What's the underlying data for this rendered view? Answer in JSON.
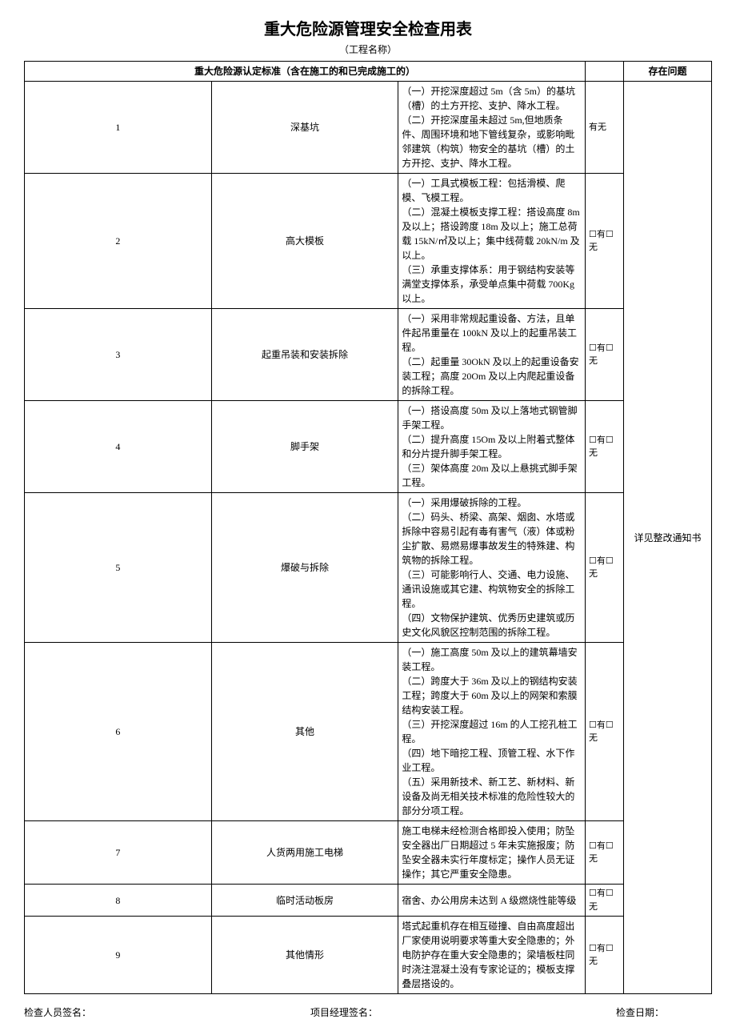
{
  "title": "重大危险源管理安全检查用表",
  "subtitle": "（工程名称）",
  "header": {
    "standard": "重大危险源认定标准（含在施工的和已完成施工的）",
    "issue": "存在问题"
  },
  "issue_note": "详见整改通知书",
  "checks": {
    "r1": "有无",
    "r2": "☐有☐无",
    "r3": "☐有☐无",
    "r4": "☐有☐无",
    "r5": "☐有☐无",
    "r6": "☐有☐无",
    "r7": "☐有☐无",
    "r8": "☐有☐无",
    "r9": "☐有☐无"
  },
  "rows": {
    "r1": {
      "num": "1",
      "name": "深基坑",
      "desc": "（一）开挖深度超过 5m（含 5m）的基坑（槽）的土方开挖、支护、降水工程。\n（二）开挖深度虽未超过 5m,但地质条件、周围环境和地下管线复杂，或影响毗邻建筑（构筑）物安全的基坑（槽）的土方开挖、支护、降水工程。"
    },
    "r2": {
      "num": "2",
      "name": "高大模板",
      "desc": "（一）工具式模板工程：包括滑模、爬模、飞模工程。\n（二）混凝土模板支撑工程：搭设高度 8m 及以上；搭设跨度 18m 及以上；施工总荷载 15kN/㎡及以上；集中线荷载 20kN/m 及以上。\n（三）承重支撑体系：用于钢结构安装等满堂支撑体系，承受单点集中荷载 700Kg 以上。"
    },
    "r3": {
      "num": "3",
      "name": "起重吊装和安装拆除",
      "desc": "（一）采用非常规起重设备、方法，且单件起吊重量在 100kN 及以上的起重吊装工程。\n（二）起重量 30OkN 及以上的起重设备安装工程；高度 20Om 及以上内爬起重设备的拆除工程。"
    },
    "r4": {
      "num": "4",
      "name": "脚手架",
      "desc": "（一）搭设高度 50m 及以上落地式钢管脚手架工程。\n（二）提升高度 15Om 及以上附着式整体和分片提升脚手架工程。\n（三）架体高度 20m 及以上悬挑式脚手架工程。"
    },
    "r5": {
      "num": "5",
      "name": "爆破与拆除",
      "desc": "（一）采用爆破拆除的工程。\n（二）码头、桥梁、高架、烟囱、水塔或拆除中容易引起有毒有害气（液）体或粉尘扩散、易燃易爆事故发生的特殊建、构筑物的拆除工程。\n（三）可能影响行人、交通、电力设施、通讯设施或其它建、构筑物安全的拆除工程。\n（四）文物保护建筑、优秀历史建筑或历史文化风貌区控制范围的拆除工程。"
    },
    "r6": {
      "num": "6",
      "name": "其他",
      "desc": "（一）施工高度 50m 及以上的建筑幕墙安装工程。\n（二）跨度大于 36m 及以上的钢结构安装工程；跨度大于 60m 及以上的网架和索膜结构安装工程。\n（三）开挖深度超过 16m 的人工挖孔桩工程。\n（四）地下暗挖工程、顶管工程、水下作业工程。\n（五）采用新技术、新工艺、新材料、新设备及尚无相关技术标准的危险性较大的部分分项工程。"
    },
    "r7": {
      "num": "7",
      "name": "人货两用施工电梯",
      "desc": "施工电梯未经检测合格即投入使用；防坠安全器出厂日期超过 5 年未实施报废；防坠安全器未实行年度标定；操作人员无证操作；其它严重安全隐患。"
    },
    "r8": {
      "num": "8",
      "name": "临时活动板房",
      "desc": "宿舍、办公用房未达到 A 级燃烧性能等级"
    },
    "r9": {
      "num": "9",
      "name": "其他情形",
      "desc": "塔式起重机存在相互碰撞、自由高度超出厂家使用说明要求等重大安全隐患的；外电防护存在重大安全隐患的；梁墙板柱同时浇注混凝土没有专家论证的；模板支撑叠层搭设的。"
    }
  },
  "footer": {
    "inspector": "检查人员签名：",
    "manager": "项目经理签名：",
    "date": "检查日期："
  }
}
